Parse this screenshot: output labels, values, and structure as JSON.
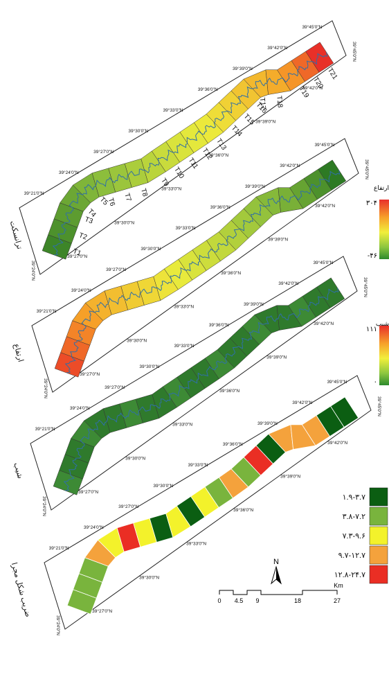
{
  "coord_labels": {
    "lat": [
      "39°45'0\"N",
      "39°42'0\"N",
      "39°39'0\"N",
      "39°36'0\"N",
      "39°33'0\"N",
      "39°30'0\"N",
      "39°27'0\"N",
      "39°24'0\"N",
      "39°21'0\"N"
    ]
  },
  "panels": [
    {
      "title": "ترانسکت",
      "coords": [
        "39°45'0\"N",
        "39°42'0\"N",
        "39°39'0\"N",
        "39°36'0\"N",
        "39°33'0\"N",
        "39°30'0\"N",
        "39°27'0\"N",
        "39°24'0\"N",
        "39°21'0\"N",
        "39°42'0\"N",
        "39°39'0\"N",
        "39°36'0\"N",
        "39°33'0\"N",
        "39°30'0\"N",
        "39°27'0\"N"
      ],
      "transects": [
        "T1",
        "T2",
        "T3",
        "T4",
        "T5",
        "T6",
        "T7",
        "T8",
        "T9",
        "T10",
        "T11",
        "T12",
        "T13",
        "T14",
        "T15",
        "T16",
        "T17",
        "T18",
        "T19",
        "T20",
        "T21"
      ]
    },
    {
      "title": "ارتفاع",
      "coords": [
        "39°45'0\"N",
        "39°42'0\"N",
        "39°39'0\"N",
        "39°36'0\"N",
        "39°33'0\"N",
        "39°30'0\"N",
        "39°27'0\"N",
        "39°24'0\"N",
        "39°21'0\"N",
        "39°42'0\"N",
        "39°39'0\"N",
        "39°36'0\"N",
        "39°33'0\"N",
        "39°30'0\"N",
        "39°27'0\"N"
      ]
    },
    {
      "title": "شیب",
      "coords": [
        "39°45'0\"N",
        "39°42'0\"N",
        "39°39'0\"N",
        "39°36'0\"N",
        "39°33'0\"N",
        "39°30'0\"N",
        "39°27'0\"N",
        "39°24'0\"N",
        "39°21'0\"N",
        "39°42'0\"N",
        "39°39'0\"N",
        "39°36'0\"N",
        "39°33'0\"N",
        "39°30'0\"N",
        "39°27'0\"N"
      ]
    },
    {
      "title": "ضریب شکل مجرا",
      "coords": [
        "39°45'0\"N",
        "39°42'0\"N",
        "39°39'0\"N",
        "39°36'0\"N",
        "39°33'0\"N",
        "39°30'0\"N",
        "39°27'0\"N",
        "39°24'0\"N",
        "39°21'0\"N",
        "39°42'0\"N",
        "39°39'0\"N",
        "39°36'0\"N",
        "39°33'0\"N",
        "39°30'0\"N",
        "39°27'0\"N"
      ]
    }
  ],
  "legend_elevation": {
    "title": "ارتفاع",
    "max": "۳۰۴",
    "min": "-۴۶",
    "colors": [
      "#e8302a",
      "#f7a12a",
      "#f1ef3c",
      "#8cc63f",
      "#2d8a2d"
    ]
  },
  "legend_slope": {
    "title": "شیب",
    "max": "۱۱۱",
    "min": "۰",
    "colors": [
      "#e8302a",
      "#f7a12a",
      "#f1ef3c",
      "#8cc63f",
      "#2d8a2d"
    ]
  },
  "legend_classes": [
    {
      "label": "۱.۹-۳.۷",
      "color": "#0b5e12"
    },
    {
      "label": "۳.۸-۷.۲",
      "color": "#79b43d"
    },
    {
      "label": "۷.۳-۹.۶",
      "color": "#f3f22b"
    },
    {
      "label": "۹.۷-۱۲.۷",
      "color": "#f4a23c"
    },
    {
      "label": "۱۲.۸-۲۴.۷",
      "color": "#ea2e24"
    }
  ],
  "scale_bar": {
    "labels": [
      "0",
      "4.5",
      "9",
      "18",
      "27"
    ],
    "unit": "Km"
  },
  "north_arrow": {
    "label": "N"
  },
  "channel_classes": [
    1,
    1,
    1,
    3,
    2,
    4,
    2,
    0,
    2,
    0,
    2,
    1,
    3,
    1,
    4,
    0,
    3,
    3,
    3,
    0,
    0
  ],
  "elevation_profile": [
    0.05,
    0.1,
    0.15,
    0.2,
    0.26,
    0.3,
    0.34,
    0.38,
    0.42,
    0.46,
    0.5,
    0.53,
    0.56,
    0.6,
    0.64,
    0.68,
    0.72,
    0.76,
    0.82,
    0.9,
    1.0
  ]
}
